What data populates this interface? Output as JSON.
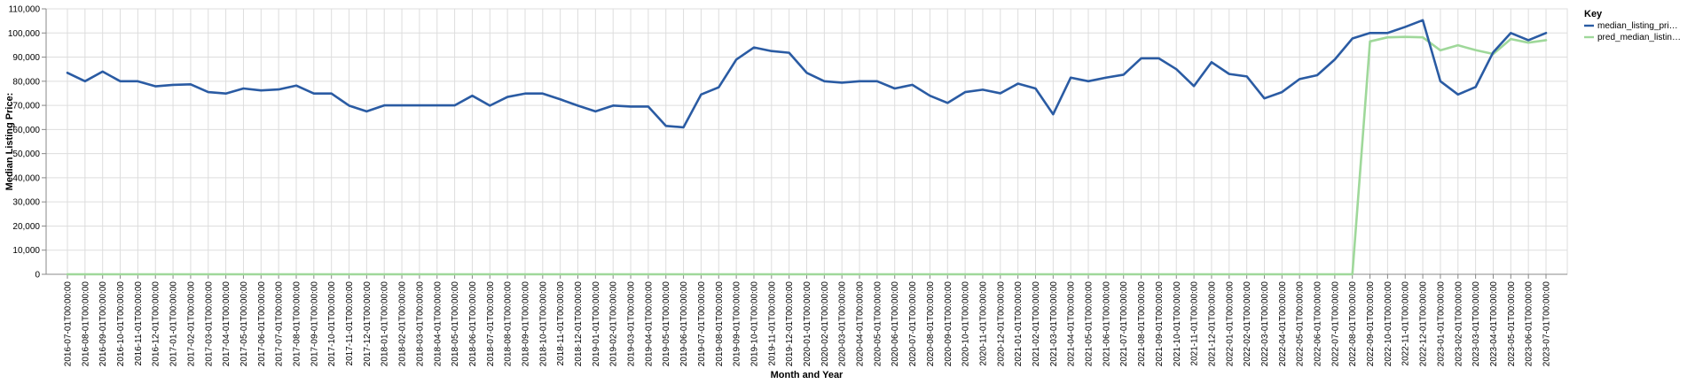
{
  "chart_data": {
    "type": "line",
    "xlabel": "Month and Year",
    "ylabel": "Median Listing Price:",
    "ylim": [
      0,
      110000
    ],
    "y_ticks": [
      0,
      10000,
      20000,
      30000,
      40000,
      50000,
      60000,
      70000,
      80000,
      90000,
      100000,
      110000
    ],
    "grid": true,
    "legend": {
      "title": "Key",
      "position": "right"
    },
    "x": [
      "2016-07-01T00:00:00",
      "2016-08-01T00:00:00",
      "2016-09-01T00:00:00",
      "2016-10-01T00:00:00",
      "2016-11-01T00:00:00",
      "2016-12-01T00:00:00",
      "2017-01-01T00:00:00",
      "2017-02-01T00:00:00",
      "2017-03-01T00:00:00",
      "2017-04-01T00:00:00",
      "2017-05-01T00:00:00",
      "2017-06-01T00:00:00",
      "2017-07-01T00:00:00",
      "2017-08-01T00:00:00",
      "2017-09-01T00:00:00",
      "2017-10-01T00:00:00",
      "2017-11-01T00:00:00",
      "2017-12-01T00:00:00",
      "2018-01-01T00:00:00",
      "2018-02-01T00:00:00",
      "2018-03-01T00:00:00",
      "2018-04-01T00:00:00",
      "2018-05-01T00:00:00",
      "2018-06-01T00:00:00",
      "2018-07-01T00:00:00",
      "2018-08-01T00:00:00",
      "2018-09-01T00:00:00",
      "2018-10-01T00:00:00",
      "2018-11-01T00:00:00",
      "2018-12-01T00:00:00",
      "2019-01-01T00:00:00",
      "2019-02-01T00:00:00",
      "2019-03-01T00:00:00",
      "2019-04-01T00:00:00",
      "2019-05-01T00:00:00",
      "2019-06-01T00:00:00",
      "2019-07-01T00:00:00",
      "2019-08-01T00:00:00",
      "2019-09-01T00:00:00",
      "2019-10-01T00:00:00",
      "2019-11-01T00:00:00",
      "2019-12-01T00:00:00",
      "2020-01-01T00:00:00",
      "2020-02-01T00:00:00",
      "2020-03-01T00:00:00",
      "2020-04-01T00:00:00",
      "2020-05-01T00:00:00",
      "2020-06-01T00:00:00",
      "2020-07-01T00:00:00",
      "2020-08-01T00:00:00",
      "2020-09-01T00:00:00",
      "2020-10-01T00:00:00",
      "2020-11-01T00:00:00",
      "2020-12-01T00:00:00",
      "2021-01-01T00:00:00",
      "2021-02-01T00:00:00",
      "2021-03-01T00:00:00",
      "2021-04-01T00:00:00",
      "2021-05-01T00:00:00",
      "2021-06-01T00:00:00",
      "2021-07-01T00:00:00",
      "2021-08-01T00:00:00",
      "2021-09-01T00:00:00",
      "2021-10-01T00:00:00",
      "2021-11-01T00:00:00",
      "2021-12-01T00:00:00",
      "2022-01-01T00:00:00",
      "2022-02-01T00:00:00",
      "2022-03-01T00:00:00",
      "2022-04-01T00:00:00",
      "2022-05-01T00:00:00",
      "2022-06-01T00:00:00",
      "2022-07-01T00:00:00",
      "2022-08-01T00:00:00",
      "2022-09-01T00:00:00",
      "2022-10-01T00:00:00",
      "2022-11-01T00:00:00",
      "2022-12-01T00:00:00",
      "2023-01-01T00:00:00",
      "2023-02-01T00:00:00",
      "2023-03-01T00:00:00",
      "2023-04-01T00:00:00",
      "2023-05-01T00:00:00",
      "2023-06-01T00:00:00",
      "2023-07-01T00:00:00"
    ],
    "series": [
      {
        "name": "median_listing_pri…",
        "color": "#2a5ba3",
        "values": [
          83500,
          80000,
          84000,
          80000,
          80000,
          77900,
          78500,
          78700,
          75500,
          74900,
          77000,
          76200,
          76600,
          78200,
          74900,
          74900,
          69900,
          67500,
          70000,
          70000,
          70000,
          70000,
          70000,
          74000,
          69900,
          73500,
          74900,
          74900,
          72500,
          69900,
          67500,
          69900,
          69500,
          69500,
          61500,
          60900,
          74500,
          77500,
          89000,
          94000,
          92500,
          91800,
          83500,
          80000,
          79400,
          80000,
          80000,
          77000,
          78500,
          74000,
          71000,
          75500,
          76500,
          75000,
          79000,
          77000,
          66300,
          81500,
          80000,
          81500,
          82700,
          89500,
          89500,
          85000,
          78000,
          87900,
          83000,
          82000,
          72900,
          75500,
          80900,
          82500,
          89000,
          97700,
          100000,
          100000,
          102500,
          105300,
          80000,
          74500,
          77600,
          92000,
          100000,
          97000,
          100000
        ]
      },
      {
        "name": "pred_median_listin…",
        "color": "#9fd89a",
        "values": [
          0,
          0,
          0,
          0,
          0,
          0,
          0,
          0,
          0,
          0,
          0,
          0,
          0,
          0,
          0,
          0,
          0,
          0,
          0,
          0,
          0,
          0,
          0,
          0,
          0,
          0,
          0,
          0,
          0,
          0,
          0,
          0,
          0,
          0,
          0,
          0,
          0,
          0,
          0,
          0,
          0,
          0,
          0,
          0,
          0,
          0,
          0,
          0,
          0,
          0,
          0,
          0,
          0,
          0,
          0,
          0,
          0,
          0,
          0,
          0,
          0,
          0,
          0,
          0,
          0,
          0,
          0,
          0,
          0,
          0,
          0,
          0,
          0,
          0,
          96500,
          98200,
          98400,
          98200,
          92800,
          94900,
          92900,
          91300,
          97500,
          96000,
          97000
        ]
      }
    ]
  }
}
